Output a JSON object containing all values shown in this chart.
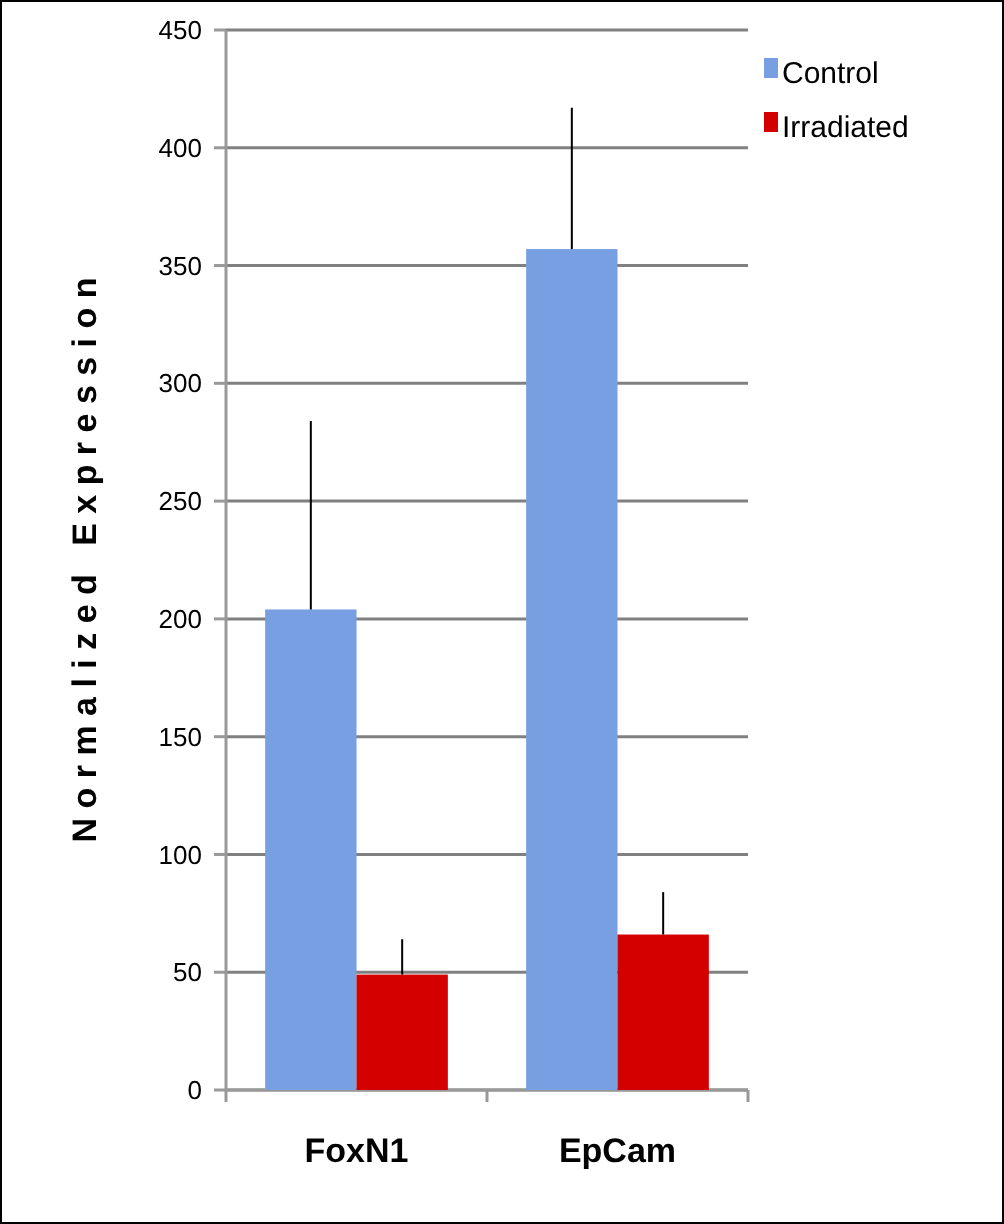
{
  "chart_data": {
    "type": "bar",
    "ylabel": "N o r m a l i z e d   E x p r e s s i o n",
    "categories": [
      "FoxN1",
      "EpCam"
    ],
    "series": [
      {
        "name": "Control",
        "color": "#779fe1",
        "values": [
          204,
          357
        ],
        "errors": [
          [
            204,
            284
          ],
          [
            357,
            417
          ]
        ]
      },
      {
        "name": "Irradiated",
        "color": "#d40000",
        "values": [
          49,
          66
        ],
        "errors": [
          [
            49,
            64
          ],
          [
            66,
            84
          ]
        ]
      }
    ],
    "ylim": [
      0,
      450
    ],
    "yticks": [
      0,
      50,
      100,
      150,
      200,
      250,
      300,
      350,
      400,
      450
    ],
    "grid": "y",
    "legend": "top right"
  }
}
